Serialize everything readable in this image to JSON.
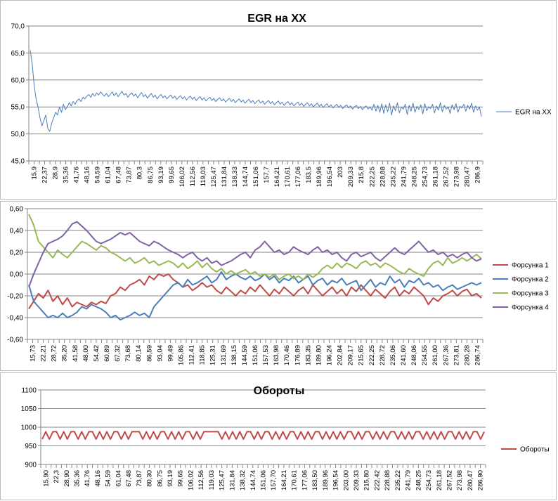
{
  "chart_data": [
    {
      "type": "line",
      "title": "EGR на ХХ",
      "ylim": [
        45.0,
        70.0
      ],
      "yticks": [
        "70,0",
        "65,0",
        "60,0",
        "55,0",
        "50,0",
        "45,0"
      ],
      "x_tick_labels": [
        "15,9",
        "22,37",
        "28,9",
        "35,36",
        "41,76",
        "48,16",
        "54,59",
        "61,04",
        "67,48",
        "73,87",
        "80,3",
        "86,75",
        "93,19",
        "99,65",
        "106,02",
        "112,56",
        "119,03",
        "125,47",
        "131,84",
        "138,33",
        "144,74",
        "151,06",
        "157,7",
        "164,21",
        "170,61",
        "177,06",
        "183,5",
        "189,96",
        "196,54",
        "203",
        "209,33",
        "215,8",
        "222,25",
        "228,88",
        "235,22",
        "241,79",
        "248,25",
        "254,73",
        "261,18",
        "267,52",
        "273,98",
        "280,47",
        "286,9"
      ],
      "legend_position": "right",
      "gridlines": "horizontal",
      "series": [
        {
          "name": "EGR на ХХ",
          "color": "#4a7ebb",
          "values": [
            65.5,
            63.0,
            59.0,
            56.5,
            55.0,
            53.0,
            51.5,
            52.5,
            53.5,
            51.0,
            50.5,
            52.0,
            53.0,
            54.0,
            53.5,
            55.0,
            54.0,
            55.5,
            54.5,
            55.0,
            55.8,
            55.2,
            56.0,
            55.5,
            56.2,
            56.5,
            56.0,
            56.8,
            56.5,
            57.0,
            57.3,
            56.8,
            57.5,
            57.0,
            57.6,
            57.2,
            57.8,
            57.4,
            57.0,
            57.5,
            56.9,
            57.3,
            57.8,
            57.1,
            57.6,
            56.9,
            57.4,
            57.9,
            57.2,
            57.5,
            56.8,
            57.3,
            57.6,
            57.0,
            57.4,
            56.7,
            57.2,
            57.7,
            56.9,
            57.3,
            56.6,
            57.1,
            57.5,
            56.8,
            57.2,
            56.5,
            57.0,
            57.3,
            56.7,
            57.1,
            56.5,
            56.9,
            57.2,
            56.6,
            57.0,
            56.4,
            56.8,
            57.1,
            56.5,
            56.9,
            56.3,
            56.7,
            57.0,
            56.4,
            56.8,
            56.2,
            56.6,
            56.9,
            56.3,
            56.7,
            56.1,
            56.5,
            56.8,
            56.2,
            56.6,
            56.0,
            56.4,
            56.7,
            56.1,
            56.5,
            55.9,
            56.3,
            56.6,
            56.0,
            56.4,
            55.8,
            56.2,
            56.5,
            55.9,
            56.3,
            55.7,
            56.1,
            56.4,
            55.8,
            56.2,
            55.6,
            56.0,
            56.3,
            55.7,
            56.1,
            55.5,
            55.9,
            56.2,
            55.6,
            56.0,
            55.4,
            55.8,
            56.1,
            55.5,
            55.9,
            55.3,
            55.7,
            56.0,
            55.4,
            55.8,
            55.2,
            55.6,
            55.9,
            55.3,
            55.7,
            55.1,
            55.5,
            55.8,
            55.2,
            55.6,
            55.0,
            55.4,
            55.7,
            55.1,
            55.5,
            54.9,
            55.3,
            55.6,
            55.0,
            55.4,
            54.8,
            55.2,
            55.5,
            54.9,
            55.3,
            54.7,
            55.1,
            55.4,
            54.8,
            55.2,
            54.6,
            55.0,
            55.3,
            54.7,
            55.1,
            54.5,
            54.9,
            55.2,
            54.6,
            55.0,
            54.4,
            55.5,
            54.2,
            55.3,
            54.0,
            55.6,
            53.8,
            55.4,
            54.1,
            55.7,
            53.5,
            55.2,
            54.3,
            55.8,
            53.9,
            55.0,
            54.6,
            55.5,
            53.6,
            55.3,
            54.2,
            55.7,
            54.0,
            55.1,
            54.5,
            55.4,
            53.7,
            55.6,
            54.3,
            55.0,
            54.7,
            55.5,
            53.9,
            55.2,
            54.4,
            55.8,
            54.1,
            55.3,
            54.6,
            55.0,
            53.8,
            55.4,
            54.5,
            55.6,
            54.0,
            55.1,
            54.8,
            55.5,
            54.2,
            55.3,
            54.6,
            55.7,
            54.0,
            55.2,
            54.4,
            55.0,
            53.2
          ]
        }
      ]
    },
    {
      "type": "line",
      "title": "",
      "ylim": [
        -0.6,
        0.6
      ],
      "yticks": [
        "0,60",
        "0,40",
        "0,20",
        "0,00",
        "-0,20",
        "-0,40",
        "-0,60"
      ],
      "x_tick_labels": [
        "15,73",
        "22,21",
        "28,72",
        "35,20",
        "41,58",
        "48,00",
        "54,42",
        "60,89",
        "67,32",
        "73,68",
        "80,14",
        "86,59",
        "93,04",
        "99,49",
        "105,86",
        "112,41",
        "118,85",
        "125,31",
        "131,69",
        "138,15",
        "144,59",
        "151,06",
        "157,53",
        "163,98",
        "170,46",
        "176,89",
        "183,35",
        "189,80",
        "196,24",
        "202,84",
        "209,17",
        "215,65",
        "222,25",
        "228,72",
        "235,06",
        "241,60",
        "248,06",
        "254,55",
        "261,00",
        "267,36",
        "273,81",
        "280,28",
        "286,74"
      ],
      "legend_position": "right",
      "gridlines": "horizontal",
      "series": [
        {
          "name": "Форсунка 1",
          "color": "#be4b48",
          "values": [
            -0.32,
            -0.25,
            -0.18,
            -0.22,
            -0.15,
            -0.25,
            -0.2,
            -0.28,
            -0.22,
            -0.3,
            -0.26,
            -0.28,
            -0.3,
            -0.26,
            -0.28,
            -0.25,
            -0.27,
            -0.2,
            -0.18,
            -0.12,
            -0.15,
            -0.1,
            -0.08,
            -0.05,
            -0.1,
            -0.02,
            -0.05,
            0.0,
            -0.02,
            0.0,
            -0.05,
            -0.08,
            -0.12,
            -0.1,
            -0.15,
            -0.12,
            -0.08,
            -0.12,
            -0.1,
            -0.15,
            -0.18,
            -0.12,
            -0.16,
            -0.2,
            -0.15,
            -0.18,
            -0.12,
            -0.16,
            -0.1,
            -0.15,
            -0.2,
            -0.14,
            -0.18,
            -0.12,
            -0.16,
            -0.2,
            -0.15,
            -0.12,
            -0.18,
            -0.1,
            -0.15,
            -0.2,
            -0.16,
            -0.12,
            -0.18,
            -0.14,
            -0.2,
            -0.12,
            -0.16,
            -0.1,
            -0.15,
            -0.2,
            -0.14,
            -0.18,
            -0.22,
            -0.16,
            -0.12,
            -0.2,
            -0.15,
            -0.18,
            -0.12,
            -0.16,
            -0.2,
            -0.28,
            -0.22,
            -0.25,
            -0.2,
            -0.18,
            -0.15,
            -0.2,
            -0.16,
            -0.14,
            -0.2,
            -0.18,
            -0.22
          ]
        },
        {
          "name": "Форсунка 2",
          "color": "#4a7ebb",
          "values": [
            -0.1,
            -0.25,
            -0.3,
            -0.35,
            -0.4,
            -0.38,
            -0.4,
            -0.36,
            -0.4,
            -0.38,
            -0.35,
            -0.3,
            -0.32,
            -0.28,
            -0.3,
            -0.32,
            -0.35,
            -0.4,
            -0.38,
            -0.42,
            -0.4,
            -0.38,
            -0.35,
            -0.38,
            -0.36,
            -0.4,
            -0.3,
            -0.25,
            -0.2,
            -0.15,
            -0.1,
            -0.08,
            -0.12,
            -0.05,
            -0.1,
            -0.08,
            -0.05,
            -0.02,
            -0.08,
            -0.05,
            0.02,
            -0.05,
            -0.02,
            0.0,
            -0.03,
            -0.05,
            -0.02,
            -0.06,
            -0.04,
            0.0,
            -0.05,
            -0.02,
            -0.08,
            -0.04,
            -0.06,
            -0.02,
            -0.08,
            -0.05,
            -0.02,
            -0.1,
            -0.06,
            -0.04,
            -0.1,
            -0.06,
            -0.08,
            -0.04,
            -0.1,
            -0.08,
            -0.06,
            -0.15,
            -0.1,
            -0.05,
            -0.12,
            -0.08,
            -0.1,
            -0.02,
            -0.08,
            -0.05,
            -0.12,
            -0.06,
            -0.08,
            -0.04,
            -0.1,
            -0.08,
            -0.12,
            -0.1,
            -0.15,
            -0.12,
            -0.1,
            -0.14,
            -0.12,
            -0.1,
            -0.08,
            -0.1,
            -0.08
          ]
        },
        {
          "name": "Форсунка 3",
          "color": "#98b954",
          "values": [
            0.55,
            0.45,
            0.3,
            0.25,
            0.2,
            0.15,
            0.22,
            0.18,
            0.15,
            0.2,
            0.25,
            0.3,
            0.28,
            0.25,
            0.22,
            0.26,
            0.24,
            0.2,
            0.18,
            0.15,
            0.12,
            0.15,
            0.1,
            0.12,
            0.15,
            0.1,
            0.12,
            0.08,
            0.1,
            0.12,
            0.1,
            0.06,
            0.1,
            0.05,
            0.08,
            0.12,
            0.06,
            0.1,
            0.05,
            0.02,
            0.05,
            0.0,
            0.03,
            0.0,
            0.02,
            0.04,
            0.0,
            0.02,
            -0.02,
            0.0,
            -0.03,
            0.0,
            -0.05,
            -0.02,
            0.0,
            -0.04,
            -0.02,
            -0.05,
            0.0,
            -0.03,
            0.0,
            0.05,
            0.08,
            0.05,
            0.1,
            0.06,
            0.1,
            0.08,
            0.05,
            0.1,
            0.12,
            0.08,
            0.1,
            0.06,
            0.1,
            0.08,
            0.05,
            0.02,
            0.0,
            0.05,
            0.02,
            0.0,
            -0.02,
            0.05,
            0.1,
            0.12,
            0.08,
            0.15,
            0.1,
            0.12,
            0.15,
            0.12,
            0.15,
            0.18,
            0.14
          ]
        },
        {
          "name": "Форсунка 4",
          "color": "#7e62a1",
          "values": [
            -0.12,
            0.0,
            0.1,
            0.2,
            0.28,
            0.3,
            0.32,
            0.35,
            0.4,
            0.46,
            0.48,
            0.44,
            0.4,
            0.35,
            0.3,
            0.28,
            0.3,
            0.32,
            0.35,
            0.38,
            0.36,
            0.38,
            0.34,
            0.3,
            0.28,
            0.26,
            0.3,
            0.28,
            0.25,
            0.22,
            0.2,
            0.18,
            0.15,
            0.18,
            0.2,
            0.15,
            0.12,
            0.15,
            0.1,
            0.12,
            0.08,
            0.1,
            0.12,
            0.15,
            0.18,
            0.2,
            0.15,
            0.22,
            0.25,
            0.3,
            0.25,
            0.2,
            0.22,
            0.18,
            0.2,
            0.25,
            0.22,
            0.2,
            0.18,
            0.22,
            0.25,
            0.2,
            0.22,
            0.18,
            0.2,
            0.15,
            0.12,
            0.18,
            0.2,
            0.16,
            0.18,
            0.2,
            0.15,
            0.12,
            0.16,
            0.2,
            0.24,
            0.2,
            0.18,
            0.22,
            0.26,
            0.3,
            0.25,
            0.2,
            0.22,
            0.18,
            0.2,
            0.16,
            0.18,
            0.15,
            0.18,
            0.2,
            0.15,
            0.12,
            0.14
          ]
        }
      ]
    },
    {
      "type": "line",
      "title": "Обороты",
      "ylim": [
        900,
        1100
      ],
      "yticks": [
        "1100",
        "1050",
        "1000",
        "950",
        "900"
      ],
      "x_tick_labels": [
        "15,90",
        "22,3",
        "28,90",
        "35,36",
        "41,76",
        "48,16",
        "54,59",
        "61,04",
        "67,48",
        "73,87",
        "80,30",
        "86,75",
        "93,19",
        "99,65",
        "106,02",
        "112,56",
        "119,03",
        "125,47",
        "131,84",
        "138,32",
        "144,74",
        "151,06",
        "157,70",
        "164,21",
        "170,61",
        "177,06",
        "183,50",
        "189,96",
        "196,54",
        "203,00",
        "209,33",
        "215,80",
        "222,42",
        "228,88",
        "235,22",
        "241,79",
        "248,25",
        "254,73",
        "261,18",
        "267,52",
        "273,98",
        "280,47",
        "286,90"
      ],
      "legend_position": "right",
      "gridlines": "horizontal",
      "series": [
        {
          "name": "Обороты",
          "color": "#be4b48",
          "values": [
            968,
            988,
            968,
            988,
            988,
            968,
            988,
            968,
            988,
            988,
            968,
            988,
            968,
            988,
            988,
            968,
            988,
            968,
            988,
            968,
            988,
            988,
            968,
            988,
            968,
            988,
            988,
            988,
            968,
            988,
            968,
            988,
            968,
            988,
            988,
            968,
            988,
            968,
            988,
            968,
            988,
            988,
            968,
            988,
            968,
            988,
            988,
            988,
            988,
            988,
            968,
            988,
            968,
            988,
            968,
            988,
            968,
            988,
            988,
            968,
            988,
            968,
            988,
            988,
            968,
            988,
            968,
            988,
            968,
            988,
            988,
            968,
            988,
            968,
            988,
            968,
            988,
            988,
            968,
            988,
            968,
            988,
            968,
            988,
            968,
            988,
            988,
            968,
            988,
            968,
            988,
            988,
            968,
            988,
            968,
            988,
            968,
            988,
            988,
            968,
            988,
            968,
            988,
            968,
            988,
            988,
            968,
            988,
            968,
            988,
            968,
            988,
            968,
            988,
            988,
            968,
            988,
            968,
            988,
            968,
            988,
            988,
            968,
            988
          ]
        }
      ]
    }
  ]
}
